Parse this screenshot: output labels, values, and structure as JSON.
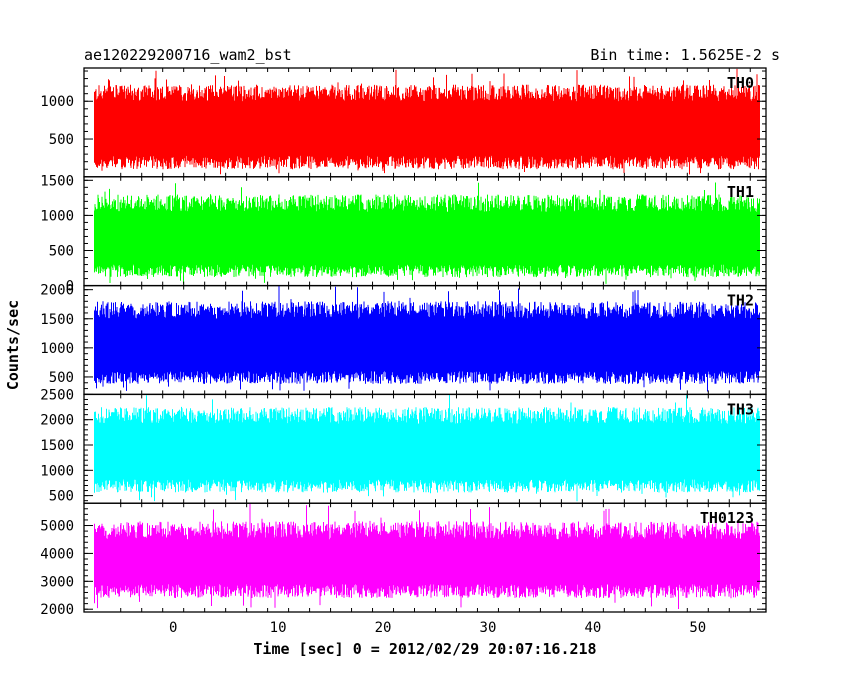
{
  "header": {
    "title": "ae120229200716_wam2_bst",
    "bin_time": "Bin time: 1.5625E-2 s"
  },
  "chart_data": {
    "type": "line",
    "xlabel": "Time [sec] 0 = 2012/02/29 20:07:16.218",
    "ylabel": "Counts/sec",
    "xlim": [
      -8.5,
      56.5
    ],
    "x_ticks": [
      "0",
      "10",
      "20",
      "30",
      "40",
      "50"
    ],
    "x_tick_values": [
      0,
      10,
      20,
      30,
      40,
      50
    ],
    "data_x_range": [
      -7.5,
      55.9
    ],
    "bin_time_s": 0.015625,
    "panels": [
      {
        "name": "TH0",
        "color": "#ff0000",
        "ylim": [
          0,
          1440
        ],
        "y_ticks": [
          "500",
          "1000"
        ],
        "y_tick_values": [
          500,
          1000
        ],
        "band_low": 280,
        "band_high": 1000,
        "min": 30,
        "max": 1440,
        "typical_low": 100,
        "typical_high": 1220
      },
      {
        "name": "TH1",
        "color": "#00ff00",
        "ylim": [
          0,
          1550
        ],
        "y_ticks": [
          "0",
          "500",
          "1000",
          "1500"
        ],
        "y_tick_values": [
          0,
          500,
          1000,
          1500
        ],
        "band_low": 300,
        "band_high": 1050,
        "min": 20,
        "max": 1470,
        "typical_low": 120,
        "typical_high": 1300
      },
      {
        "name": "TH2",
        "color": "#0000ff",
        "ylim": [
          200,
          2070
        ],
        "y_ticks": [
          "500",
          "1000",
          "1500",
          "2000"
        ],
        "y_tick_values": [
          500,
          1000,
          1500,
          2000
        ],
        "band_low": 600,
        "band_high": 1500,
        "min": 230,
        "max": 2080,
        "typical_low": 380,
        "typical_high": 1800
      },
      {
        "name": "TH3",
        "color": "#00ffff",
        "ylim": [
          350,
          2500
        ],
        "y_ticks": [
          "500",
          "1000",
          "1500",
          "2000",
          "2500"
        ],
        "y_tick_values": [
          500,
          1000,
          1500,
          2000,
          2500
        ],
        "band_low": 820,
        "band_high": 1920,
        "min": 380,
        "max": 2500,
        "typical_low": 560,
        "typical_high": 2250
      },
      {
        "name": "TH0123",
        "color": "#ff00ff",
        "ylim": [
          1900,
          5800
        ],
        "y_ticks": [
          "2000",
          "3000",
          "4000",
          "5000"
        ],
        "y_tick_values": [
          2000,
          3000,
          4000,
          5000
        ],
        "band_low": 2900,
        "band_high": 4500,
        "min": 1950,
        "max": 5800,
        "typical_low": 2400,
        "typical_high": 5150
      }
    ]
  }
}
